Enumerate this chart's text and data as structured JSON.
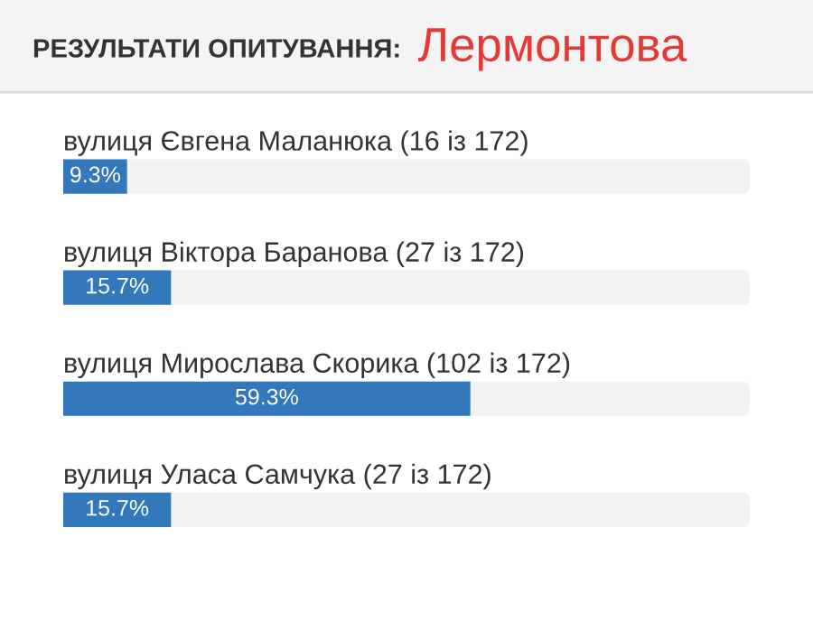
{
  "chart_data": {
    "type": "bar",
    "orientation": "horizontal",
    "title": "РЕЗУЛЬТАТИ ОПИТУВАННЯ:",
    "subtitle": "Лермонтова",
    "categories": [
      "вулиця Євгена Маланюка (16 із 172)",
      "вулиця Віктора Баранова (27 із 172)",
      "вулиця Мирослава Скорика (102 із 172)",
      "вулиця Уласа Самчука (27 із 172)"
    ],
    "values": [
      9.3,
      15.7,
      59.3,
      15.7
    ],
    "value_labels": [
      "9.3%",
      "15.7%",
      "59.3%",
      "15.7%"
    ],
    "color": "#3478bc",
    "xlim": [
      0,
      100
    ]
  }
}
